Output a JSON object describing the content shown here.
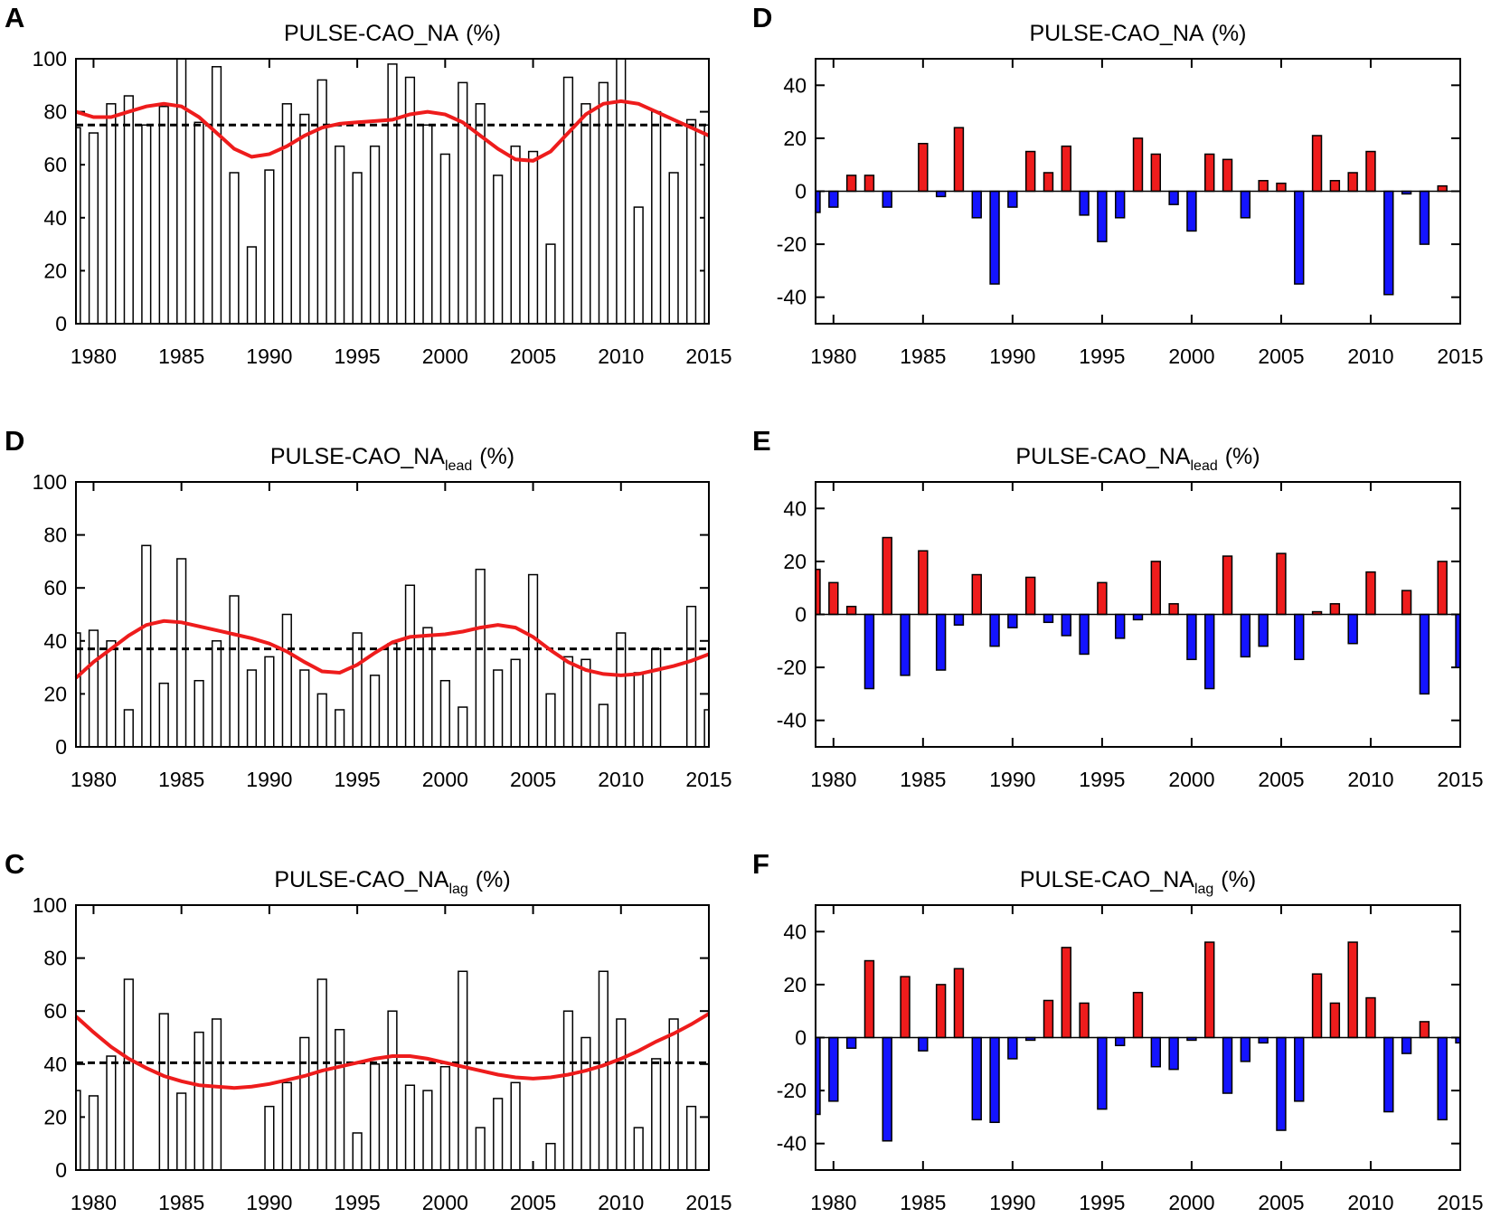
{
  "chart_data": [
    {
      "type": "bar",
      "panel": "A",
      "title": "PULSE-CAO_NA",
      "title_unit": "(%)",
      "x": [
        1979,
        1980,
        1981,
        1982,
        1983,
        1984,
        1985,
        1986,
        1987,
        1988,
        1989,
        1990,
        1991,
        1992,
        1993,
        1994,
        1995,
        1996,
        1997,
        1998,
        1999,
        2000,
        2001,
        2002,
        2003,
        2004,
        2005,
        2006,
        2007,
        2008,
        2009,
        2010,
        2011,
        2012,
        2013,
        2014,
        2015
      ],
      "values": [
        74,
        72,
        83,
        86,
        75,
        82,
        100,
        76,
        97,
        57,
        29,
        58,
        83,
        79,
        92,
        67,
        57,
        67,
        98,
        93,
        75,
        64,
        91,
        83,
        56,
        67,
        65,
        30,
        93,
        83,
        91,
        100,
        44,
        80,
        57,
        77,
        75
      ],
      "smooth": [
        80,
        78,
        78,
        80,
        82,
        83,
        82,
        78,
        72,
        66,
        63,
        64,
        67,
        71,
        74,
        75.5,
        76,
        76.5,
        77,
        79,
        80,
        79,
        76,
        71,
        66,
        62,
        61.5,
        65,
        72,
        79,
        83,
        84,
        83,
        80,
        77,
        74,
        71
      ],
      "mean": 75,
      "color": "#ffffff",
      "edge_color": "#000000",
      "line_color": "#ee1c1c",
      "xlim": [
        1979,
        2015
      ],
      "xticks": [
        1980,
        1985,
        1990,
        1995,
        2000,
        2005,
        2010,
        2015
      ],
      "ylim": [
        0,
        100
      ],
      "yticks": [
        0,
        20,
        40,
        60,
        80,
        100
      ]
    },
    {
      "type": "bar",
      "panel": "D",
      "title": "PULSE-CAO_NA",
      "title_unit": "(%)",
      "x": [
        1979,
        1980,
        1981,
        1982,
        1983,
        1984,
        1985,
        1986,
        1987,
        1988,
        1989,
        1990,
        1991,
        1992,
        1993,
        1994,
        1995,
        1996,
        1997,
        1998,
        1999,
        2000,
        2001,
        2002,
        2003,
        2004,
        2005,
        2006,
        2007,
        2008,
        2009,
        2010,
        2011,
        2012,
        2013,
        2014,
        2015
      ],
      "values": [
        -8,
        -6,
        6,
        6,
        -6,
        0,
        18,
        -2,
        24,
        -10,
        -35,
        -6,
        15,
        7,
        17,
        -9,
        -19,
        -10,
        20,
        14,
        -5,
        -15,
        14,
        12,
        -10,
        4,
        3,
        -35,
        21,
        4,
        7,
        15,
        -39,
        -1,
        -20,
        2,
        0
      ],
      "positive_color": "#ee1c1c",
      "negative_color": "#1414ff",
      "edge_color": "#000000",
      "xlim": [
        1979,
        2015
      ],
      "xticks": [
        1980,
        1985,
        1990,
        1995,
        2000,
        2005,
        2010,
        2015
      ],
      "ylim": [
        -50,
        50
      ],
      "yticks": [
        -40,
        -20,
        0,
        20,
        40
      ]
    },
    {
      "type": "bar",
      "panel": "D",
      "title": "PULSE-CAO_NA",
      "title_subscript": "lead",
      "title_unit": "(%)",
      "x": [
        1979,
        1980,
        1981,
        1982,
        1983,
        1984,
        1985,
        1986,
        1987,
        1988,
        1989,
        1990,
        1991,
        1992,
        1993,
        1994,
        1995,
        1996,
        1997,
        1998,
        1999,
        2000,
        2001,
        2002,
        2003,
        2004,
        2005,
        2006,
        2007,
        2008,
        2009,
        2010,
        2011,
        2012,
        2013,
        2014,
        2015
      ],
      "values": [
        43,
        44,
        40,
        14,
        76,
        24,
        71,
        25,
        40,
        57,
        29,
        34,
        50,
        29,
        20,
        14,
        43,
        27,
        39,
        61,
        45,
        25,
        15,
        67,
        29,
        33,
        65,
        20,
        34,
        33,
        16,
        43,
        28,
        37,
        0,
        53,
        14
      ],
      "smooth": [
        26,
        32,
        37,
        42,
        46,
        47.5,
        47,
        45.5,
        44,
        42.5,
        41,
        39,
        36,
        32,
        28.5,
        28,
        31,
        35.5,
        39.5,
        41.5,
        42,
        42.5,
        43.5,
        45,
        46,
        45,
        41.5,
        36.5,
        32,
        29,
        27.5,
        27,
        27.5,
        29,
        30.5,
        32.5,
        35
      ],
      "mean": 37,
      "color": "#ffffff",
      "edge_color": "#000000",
      "line_color": "#ee1c1c",
      "xlim": [
        1979,
        2015
      ],
      "xticks": [
        1980,
        1985,
        1990,
        1995,
        2000,
        2005,
        2010,
        2015
      ],
      "ylim": [
        0,
        100
      ],
      "yticks": [
        0,
        20,
        40,
        60,
        80,
        100
      ]
    },
    {
      "type": "bar",
      "panel": "E",
      "title": "PULSE-CAO_NA",
      "title_subscript": "lead",
      "title_unit": "(%)",
      "x": [
        1979,
        1980,
        1981,
        1982,
        1983,
        1984,
        1985,
        1986,
        1987,
        1988,
        1989,
        1990,
        1991,
        1992,
        1993,
        1994,
        1995,
        1996,
        1997,
        1998,
        1999,
        2000,
        2001,
        2002,
        2003,
        2004,
        2005,
        2006,
        2007,
        2008,
        2009,
        2010,
        2011,
        2012,
        2013,
        2014,
        2015
      ],
      "values": [
        17,
        12,
        3,
        -28,
        29,
        -23,
        24,
        -21,
        -4,
        15,
        -12,
        -5,
        14,
        -3,
        -8,
        -15,
        12,
        -9,
        -2,
        20,
        4,
        -17,
        -28,
        22,
        -16,
        -12,
        23,
        -17,
        1,
        4,
        -11,
        16,
        0,
        9,
        -30,
        20,
        -20
      ],
      "positive_color": "#ee1c1c",
      "negative_color": "#1414ff",
      "edge_color": "#000000",
      "xlim": [
        1979,
        2015
      ],
      "xticks": [
        1980,
        1985,
        1990,
        1995,
        2000,
        2005,
        2010,
        2015
      ],
      "ylim": [
        -50,
        50
      ],
      "yticks": [
        -40,
        -20,
        0,
        20,
        40
      ]
    },
    {
      "type": "bar",
      "panel": "C",
      "title": "PULSE-CAO_NA",
      "title_subscript": "lag",
      "title_unit": "(%)",
      "x": [
        1979,
        1980,
        1981,
        1982,
        1983,
        1984,
        1985,
        1986,
        1987,
        1988,
        1989,
        1990,
        1991,
        1992,
        1993,
        1994,
        1995,
        1996,
        1997,
        1998,
        1999,
        2000,
        2001,
        2002,
        2003,
        2004,
        2005,
        2006,
        2007,
        2008,
        2009,
        2010,
        2011,
        2012,
        2013,
        2014,
        2015
      ],
      "values": [
        30,
        28,
        43,
        72,
        0,
        59,
        29,
        52,
        57,
        0,
        0,
        24,
        33,
        50,
        72,
        53,
        14,
        40,
        60,
        32,
        30,
        39,
        75,
        16,
        27,
        33,
        0,
        10,
        60,
        50,
        75,
        57,
        16,
        42,
        57,
        24,
        0
      ],
      "smooth": [
        58,
        52,
        46.5,
        42,
        38.5,
        35.5,
        33.5,
        32,
        31.5,
        31,
        31.5,
        32.5,
        34,
        35.5,
        37.5,
        39,
        40.5,
        42,
        43,
        43,
        42,
        40.5,
        39,
        37.5,
        36,
        35,
        34.5,
        35,
        36,
        37.5,
        39.5,
        42,
        45,
        48.5,
        51.5,
        55,
        59
      ],
      "mean": 40.5,
      "color": "#ffffff",
      "edge_color": "#000000",
      "line_color": "#ee1c1c",
      "xlim": [
        1979,
        2015
      ],
      "xticks": [
        1980,
        1985,
        1990,
        1995,
        2000,
        2005,
        2010,
        2015
      ],
      "ylim": [
        0,
        100
      ],
      "yticks": [
        0,
        20,
        40,
        60,
        80,
        100
      ]
    },
    {
      "type": "bar",
      "panel": "F",
      "title": "PULSE-CAO_NA",
      "title_subscript": "lag",
      "title_unit": "(%)",
      "x": [
        1979,
        1980,
        1981,
        1982,
        1983,
        1984,
        1985,
        1986,
        1987,
        1988,
        1989,
        1990,
        1991,
        1992,
        1993,
        1994,
        1995,
        1996,
        1997,
        1998,
        1999,
        2000,
        2001,
        2002,
        2003,
        2004,
        2005,
        2006,
        2007,
        2008,
        2009,
        2010,
        2011,
        2012,
        2013,
        2014,
        2015
      ],
      "values": [
        -29,
        -24,
        -4,
        29,
        -39,
        23,
        -5,
        20,
        26,
        -31,
        -32,
        -8,
        -1,
        14,
        34,
        13,
        -27,
        -3,
        17,
        -11,
        -12,
        -1,
        36,
        -21,
        -9,
        -2,
        -35,
        -24,
        24,
        13,
        36,
        15,
        -28,
        -6,
        6,
        -31,
        -2
      ],
      "positive_color": "#ee1c1c",
      "negative_color": "#1414ff",
      "edge_color": "#000000",
      "xlim": [
        1979,
        2015
      ],
      "xticks": [
        1980,
        1985,
        1990,
        1995,
        2000,
        2005,
        2010,
        2015
      ],
      "ylim": [
        -50,
        50
      ],
      "yticks": [
        -40,
        -20,
        0,
        20,
        40
      ]
    }
  ]
}
